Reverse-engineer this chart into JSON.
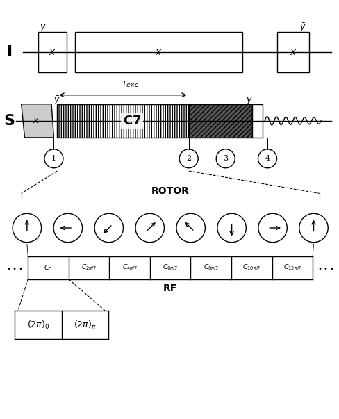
{
  "bg_color": "#ffffff",
  "fig_width": 4.89,
  "fig_height": 6.03,
  "dpi": 100,
  "arrow_angles_deg": [
    90,
    180,
    -135,
    45,
    135,
    -90,
    0,
    90
  ],
  "num_circles": 8,
  "C_labels": [
    "C_0",
    "C_{2\\pi/7}",
    "C_{4\\pi/7}",
    "C_{6\\pi/7}",
    "C_{8\\pi/7}",
    "C_{10\\pi/7}",
    "C_{12\\pi/7}"
  ]
}
